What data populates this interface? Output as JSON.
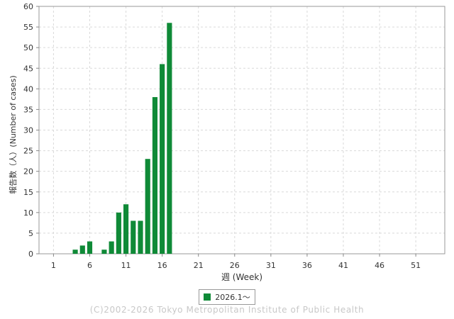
{
  "colors": {
    "bar": "#0f8a37",
    "grid": "#d9d9d9",
    "axis": "#888888"
  },
  "legend": {
    "label": "2026.1～"
  },
  "copyright": "(C)2002-2026 Tokyo Metropolitan Institute of Public Health",
  "chart_data": {
    "type": "bar",
    "xlabel": "週 (Week)",
    "ylabel": "報告数（人）(Number of cases)",
    "xlim": [
      -1,
      55
    ],
    "ylim": [
      0,
      60
    ],
    "yticks": [
      0,
      5,
      10,
      15,
      20,
      25,
      30,
      35,
      40,
      45,
      50,
      55,
      60
    ],
    "xticks": [
      1,
      6,
      11,
      16,
      21,
      26,
      31,
      36,
      41,
      46,
      51
    ],
    "grid": true,
    "legend_position": "bottom",
    "series": [
      {
        "name": "2026.1～",
        "x": [
          1,
          2,
          3,
          4,
          5,
          6,
          7,
          8,
          9,
          10,
          11,
          12,
          13,
          14,
          15,
          16,
          17
        ],
        "values": [
          0,
          0,
          0,
          1,
          2,
          3,
          0,
          1,
          3,
          10,
          12,
          8,
          8,
          23,
          38,
          46,
          56
        ]
      }
    ]
  }
}
